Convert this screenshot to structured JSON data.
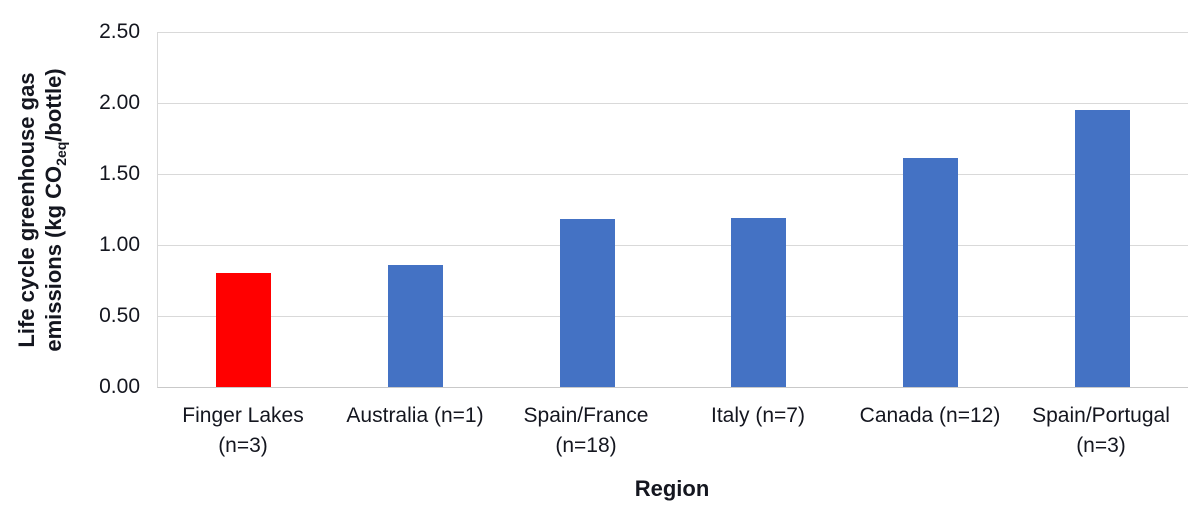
{
  "chart_data": {
    "type": "bar",
    "xlabel": "Region",
    "ylabel": "Life cycle greenhouse gas emissions (kg CO2eq/bottle)",
    "ylabel_line1": "Life cycle greenhouse gas",
    "ylabel_line2_pre": "emissions (kg CO",
    "ylabel_line2_sub": "2eq",
    "ylabel_line2_post": "/bottle)",
    "categories": [
      "Finger Lakes (n=3)",
      "Australia (n=1)",
      "Spain/France (n=18)",
      "Italy (n=7)",
      "Canada (n=12)",
      "Spain/Portugal (n=3)"
    ],
    "category_label_lines": [
      [
        "Finger Lakes",
        "(n=3)"
      ],
      [
        "Australia (n=1)"
      ],
      [
        "Spain/France",
        "(n=18)"
      ],
      [
        "Italy (n=7)"
      ],
      [
        "Canada (n=12)"
      ],
      [
        "Spain/Portugal",
        "(n=3)"
      ]
    ],
    "values": [
      0.8,
      0.86,
      1.18,
      1.19,
      1.61,
      1.95
    ],
    "bar_colors": [
      "#FF0000",
      "#4472C4",
      "#4472C4",
      "#4472C4",
      "#4472C4",
      "#4472C4"
    ],
    "highlight_color": "#FF0000",
    "series_color": "#4472C4",
    "ylim": [
      0,
      2.5
    ],
    "ytick_step": 0.5,
    "ytick_labels": [
      "0.00",
      "0.50",
      "1.00",
      "1.50",
      "2.00",
      "2.50"
    ],
    "grid": "horizontal",
    "gridline_color": "#D9D9D9",
    "axis_line_color": "#C9C9C9",
    "text_color": "#14161f",
    "legend_position": "none",
    "background_color": "#ffffff"
  }
}
